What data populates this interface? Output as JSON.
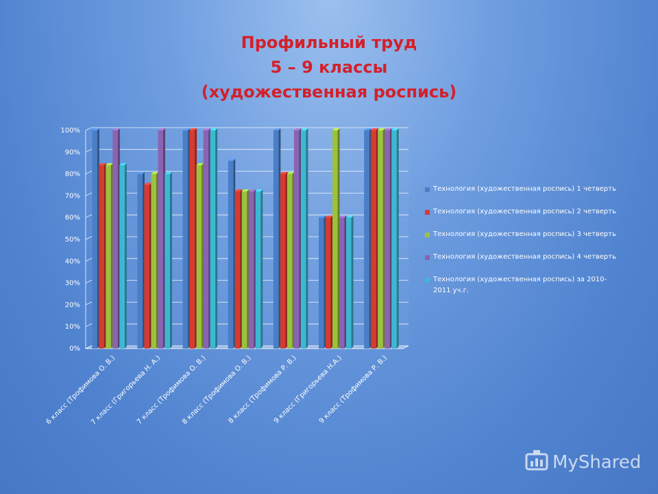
{
  "slide": {
    "title_lines": [
      "Профильный труд",
      "5 – 9 классы",
      "(художественная роспись)"
    ]
  },
  "watermark": {
    "text": "MyShared",
    "icon": "myshared-logo-icon"
  },
  "colors": {
    "title": "#d4202a",
    "series": [
      "#4a7ec7",
      "#d63b2f",
      "#9bc23c",
      "#8a64b2",
      "#3cb8d2"
    ]
  },
  "chart_data": {
    "type": "bar",
    "title": "",
    "xlabel": "",
    "ylabel": "",
    "ylim": [
      0,
      100
    ],
    "y_ticks": [
      "0%",
      "10%",
      "20%",
      "30%",
      "40%",
      "50%",
      "60%",
      "70%",
      "80%",
      "90%",
      "100%"
    ],
    "grid": true,
    "legend_position": "right",
    "categories": [
      "6 класс (Трофимова О. В.)",
      "7 класс (Григорьева Н. А.)",
      "7 класс (Трофимова О. В.)",
      "8 класс (Трофимова О. В.)",
      "8 класс (Трофимова Р. В.)",
      "9 класс (Григорьева Н.А.)",
      "9 класс (Трофимова Р. В.)"
    ],
    "series": [
      {
        "name": "Технология (художественная роспись) 1 четверть",
        "values": [
          100,
          80,
          100,
          86,
          100,
          60,
          100
        ]
      },
      {
        "name": "Технология (художественная роспись) 2 четверть",
        "values": [
          84,
          75,
          100,
          72,
          80,
          60,
          100
        ]
      },
      {
        "name": "Технология (художественная роспись) 3 четверть",
        "values": [
          84,
          80,
          84,
          72,
          80,
          100,
          100
        ]
      },
      {
        "name": "Технология (художественная роспись) 4 четверть",
        "values": [
          100,
          100,
          100,
          72,
          100,
          60,
          100
        ]
      },
      {
        "name": "Технология (художественная роспись) за 2010-2011 уч.г.",
        "values": [
          84,
          80,
          100,
          72,
          100,
          60,
          100
        ]
      }
    ]
  }
}
